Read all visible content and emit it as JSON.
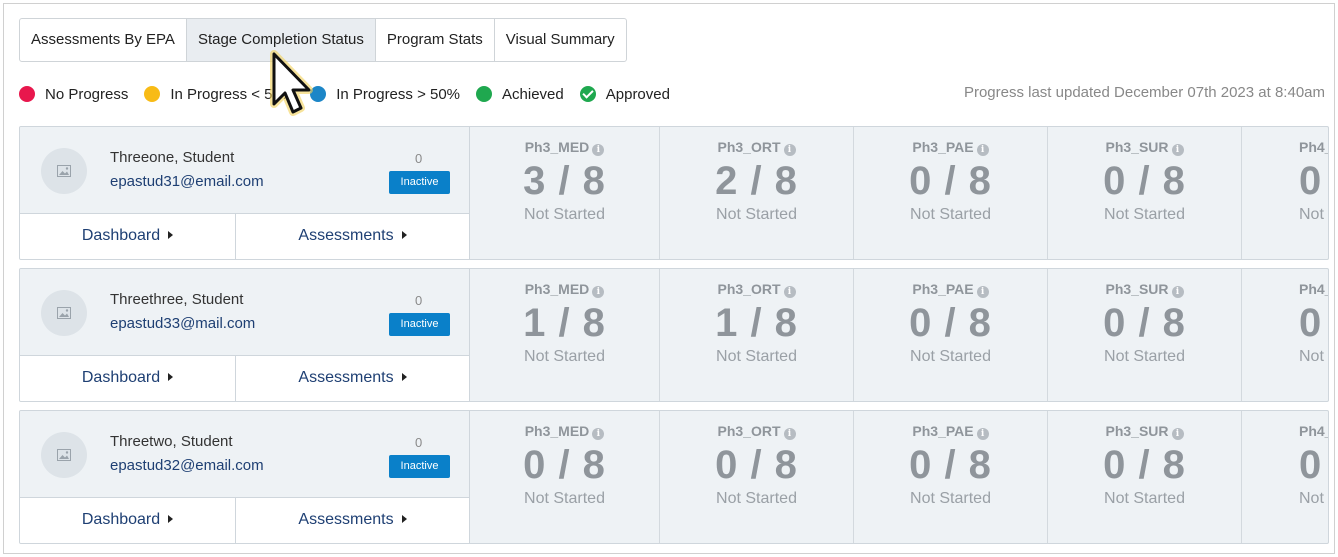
{
  "tabs": [
    {
      "label": "Assessments By EPA",
      "active": false
    },
    {
      "label": "Stage Completion Status",
      "active": true
    },
    {
      "label": "Program Stats",
      "active": false
    },
    {
      "label": "Visual Summary",
      "active": false
    }
  ],
  "legend": [
    {
      "label": "No Progress",
      "color": "#e8174d",
      "icon": "dot"
    },
    {
      "label": "In Progress < 50%",
      "color": "#f8bb16",
      "icon": "dot"
    },
    {
      "label": "In Progress > 50%",
      "color": "#1c86c7",
      "icon": "dot"
    },
    {
      "label": "Achieved",
      "color": "#1fa84f",
      "icon": "dot"
    },
    {
      "label": "Approved",
      "color": "#1fa84f",
      "icon": "check-circle"
    }
  ],
  "progress_updated": "Progress last updated December 07th 2023 at 8:40am",
  "students": [
    {
      "name": "Threeone, Student",
      "email": "epastud31@email.com",
      "count": "0",
      "status": "Inactive",
      "dashboard_label": "Dashboard",
      "assessments_label": "Assessments",
      "stages": [
        {
          "code": "Ph3_MED",
          "value": "3 / 8",
          "status": "Not Started"
        },
        {
          "code": "Ph3_ORT",
          "value": "2 / 8",
          "status": "Not Started"
        },
        {
          "code": "Ph3_PAE",
          "value": "0 / 8",
          "status": "Not Started"
        },
        {
          "code": "Ph3_SUR",
          "value": "0 / 8",
          "status": "Not Started"
        },
        {
          "code": "Ph4_",
          "value": "0",
          "status": "Not"
        }
      ]
    },
    {
      "name": "Threethree, Student",
      "email": "epastud33@mail.com",
      "count": "0",
      "status": "Inactive",
      "dashboard_label": "Dashboard",
      "assessments_label": "Assessments",
      "stages": [
        {
          "code": "Ph3_MED",
          "value": "1 / 8",
          "status": "Not Started"
        },
        {
          "code": "Ph3_ORT",
          "value": "1 / 8",
          "status": "Not Started"
        },
        {
          "code": "Ph3_PAE",
          "value": "0 / 8",
          "status": "Not Started"
        },
        {
          "code": "Ph3_SUR",
          "value": "0 / 8",
          "status": "Not Started"
        },
        {
          "code": "Ph4_",
          "value": "0",
          "status": "Not"
        }
      ]
    },
    {
      "name": "Threetwo, Student",
      "email": "epastud32@email.com",
      "count": "0",
      "status": "Inactive",
      "dashboard_label": "Dashboard",
      "assessments_label": "Assessments",
      "stages": [
        {
          "code": "Ph3_MED",
          "value": "0 / 8",
          "status": "Not Started"
        },
        {
          "code": "Ph3_ORT",
          "value": "0 / 8",
          "status": "Not Started"
        },
        {
          "code": "Ph3_PAE",
          "value": "0 / 8",
          "status": "Not Started"
        },
        {
          "code": "Ph3_SUR",
          "value": "0 / 8",
          "status": "Not Started"
        },
        {
          "code": "Ph4_",
          "value": "0",
          "status": "Not"
        }
      ]
    }
  ]
}
